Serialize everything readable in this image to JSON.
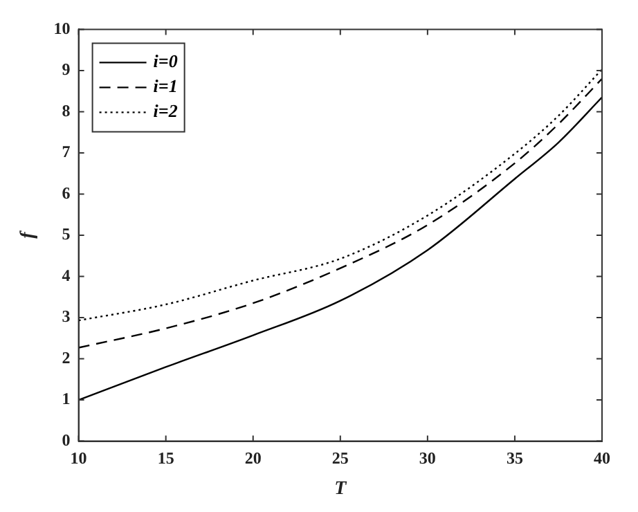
{
  "chart_data": {
    "type": "line",
    "xlabel": "T",
    "ylabel": "f",
    "x": [
      10,
      15,
      20,
      25,
      30,
      35,
      37.5,
      40
    ],
    "series": [
      {
        "name": "i=0",
        "color": "#000000",
        "line_style": "solid",
        "values": [
          1.0,
          1.8,
          2.57,
          3.41,
          4.64,
          6.37,
          7.25,
          8.35
        ]
      },
      {
        "name": "i=1",
        "color": "#000000",
        "line_style": "dashed",
        "values": [
          2.27,
          2.74,
          3.35,
          4.2,
          5.25,
          6.75,
          7.7,
          8.8
        ]
      },
      {
        "name": "i=2",
        "color": "#000000",
        "line_style": "dotted",
        "values": [
          2.93,
          3.32,
          3.9,
          4.43,
          5.48,
          6.98,
          7.9,
          9.03
        ]
      }
    ],
    "xlim": [
      10,
      40
    ],
    "xticks": [
      10,
      15,
      20,
      25,
      30,
      35,
      40
    ],
    "ylim": [
      0,
      10
    ],
    "yticks": [
      0,
      1,
      2,
      3,
      4,
      5,
      6,
      7,
      8,
      9,
      10
    ],
    "grid": false,
    "legend": "top left",
    "marker": "none"
  }
}
